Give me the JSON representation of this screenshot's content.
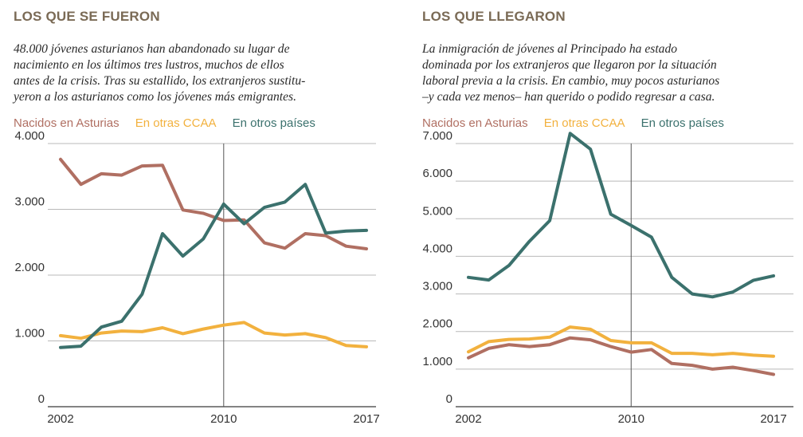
{
  "colors": {
    "asturias": "#b06f62",
    "ccaa": "#f2b13e",
    "paises": "#3b716d",
    "title": "#7a6a55",
    "grid": "#b9b9b9",
    "axis": "#3a3a3a"
  },
  "chart_data": [
    {
      "type": "line",
      "title": "LOS QUE SE FUERON",
      "description": [
        "48.000 jóvenes asturianos han abandonado su lugar de",
        "nacimiento en los últimos tres lustros, muchos de ellos",
        "antes de la crisis. Tras su estallido, los extranjeros sustitu-",
        "yeron a los asturianos como los jóvenes más emigrantes."
      ],
      "x": [
        2002,
        2003,
        2004,
        2005,
        2006,
        2007,
        2008,
        2009,
        2010,
        2011,
        2012,
        2013,
        2014,
        2015,
        2016,
        2017
      ],
      "x_ticks": [
        "2002",
        "2010",
        "2017"
      ],
      "y_ticks": [
        "0",
        "1.000",
        "2.000",
        "3.000",
        "4.000"
      ],
      "ylim": [
        0,
        4000
      ],
      "xlim": [
        2002,
        2017
      ],
      "marker_year": 2010,
      "grid": true,
      "series": [
        {
          "name": "Nacidos en Asturias",
          "color": "asturias",
          "values": [
            3760,
            3380,
            3540,
            3520,
            3660,
            3670,
            2990,
            2940,
            2830,
            2840,
            2490,
            2410,
            2630,
            2600,
            2440,
            2400
          ]
        },
        {
          "name": "En otras CCAA",
          "color": "ccaa",
          "values": [
            1080,
            1040,
            1120,
            1150,
            1140,
            1200,
            1110,
            1180,
            1240,
            1280,
            1120,
            1090,
            1110,
            1050,
            930,
            910
          ]
        },
        {
          "name": "En otros países",
          "color": "paises",
          "values": [
            900,
            920,
            1210,
            1300,
            1710,
            2630,
            2290,
            2550,
            3080,
            2780,
            3030,
            3110,
            3380,
            2640,
            2670,
            2680
          ]
        }
      ]
    },
    {
      "type": "line",
      "title": "LOS QUE LLEGARON",
      "description": [
        "La inmigración de jóvenes al Principado ha estado",
        "dominada por los extranjeros que llegaron por la situación",
        "laboral previa a la crisis. En cambio, muy pocos asturianos",
        "–y cada vez menos– han querido o podido regresar a casa."
      ],
      "x": [
        2002,
        2003,
        2004,
        2005,
        2006,
        2007,
        2008,
        2009,
        2010,
        2011,
        2012,
        2013,
        2014,
        2015,
        2016,
        2017
      ],
      "x_ticks": [
        "2002",
        "2010",
        "2017"
      ],
      "y_ticks": [
        "0",
        "1.000",
        "2.000",
        "3.000",
        "4.000",
        "5.000",
        "6.000",
        "7.000"
      ],
      "ylim": [
        0,
        7000
      ],
      "xlim": [
        2002,
        2017
      ],
      "marker_year": 2010,
      "grid": true,
      "series": [
        {
          "name": "Nacidos en Asturias",
          "color": "asturias",
          "values": [
            1300,
            1550,
            1650,
            1600,
            1650,
            1830,
            1780,
            1600,
            1450,
            1520,
            1150,
            1100,
            1000,
            1050,
            960,
            860
          ]
        },
        {
          "name": "En otras CCAA",
          "color": "ccaa",
          "values": [
            1460,
            1730,
            1790,
            1800,
            1850,
            2120,
            2060,
            1760,
            1700,
            1700,
            1420,
            1420,
            1380,
            1420,
            1370,
            1340
          ]
        },
        {
          "name": "En otros países",
          "color": "paises",
          "values": [
            3440,
            3370,
            3760,
            4400,
            4950,
            7270,
            6850,
            5120,
            4820,
            4510,
            3440,
            3000,
            2920,
            3050,
            3360,
            3480
          ]
        }
      ]
    }
  ]
}
